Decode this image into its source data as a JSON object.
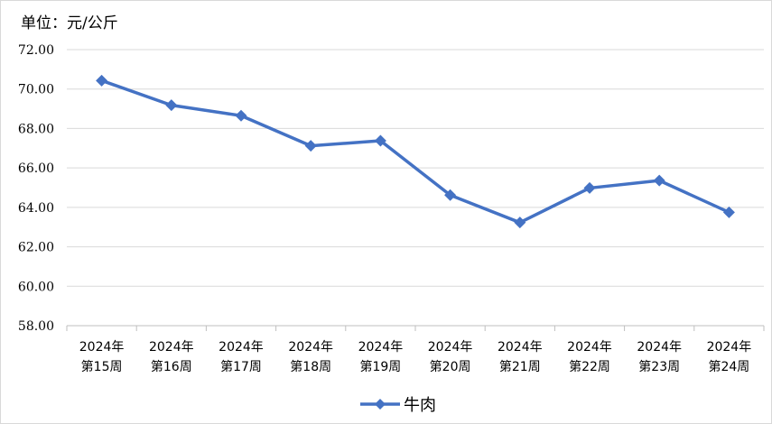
{
  "unit_label": "单位：元/公斤",
  "colors": {
    "series": "#4472C4",
    "grid": "#d9d9d9",
    "axis": "#bfbfbf"
  },
  "chart_data": {
    "type": "line",
    "title": "",
    "xlabel": "",
    "ylabel": "单位：元/公斤",
    "categories": [
      [
        "2024年",
        "第15周"
      ],
      [
        "2024年",
        "第16周"
      ],
      [
        "2024年",
        "第17周"
      ],
      [
        "2024年",
        "第18周"
      ],
      [
        "2024年",
        "第19周"
      ],
      [
        "2024年",
        "第20周"
      ],
      [
        "2024年",
        "第21周"
      ],
      [
        "2024年",
        "第22周"
      ],
      [
        "2024年",
        "第23周"
      ],
      [
        "2024年",
        "第24周"
      ]
    ],
    "y_ticks": [
      "58.00",
      "60.00",
      "62.00",
      "64.00",
      "66.00",
      "68.00",
      "70.00",
      "72.00"
    ],
    "ylim": [
      58,
      72
    ],
    "grid": true,
    "legend_position": "bottom",
    "series": [
      {
        "name": "牛肉",
        "marker": "diamond",
        "values": [
          70.43,
          69.18,
          68.65,
          67.12,
          67.38,
          64.62,
          63.23,
          64.98,
          65.36,
          63.75
        ]
      }
    ]
  }
}
